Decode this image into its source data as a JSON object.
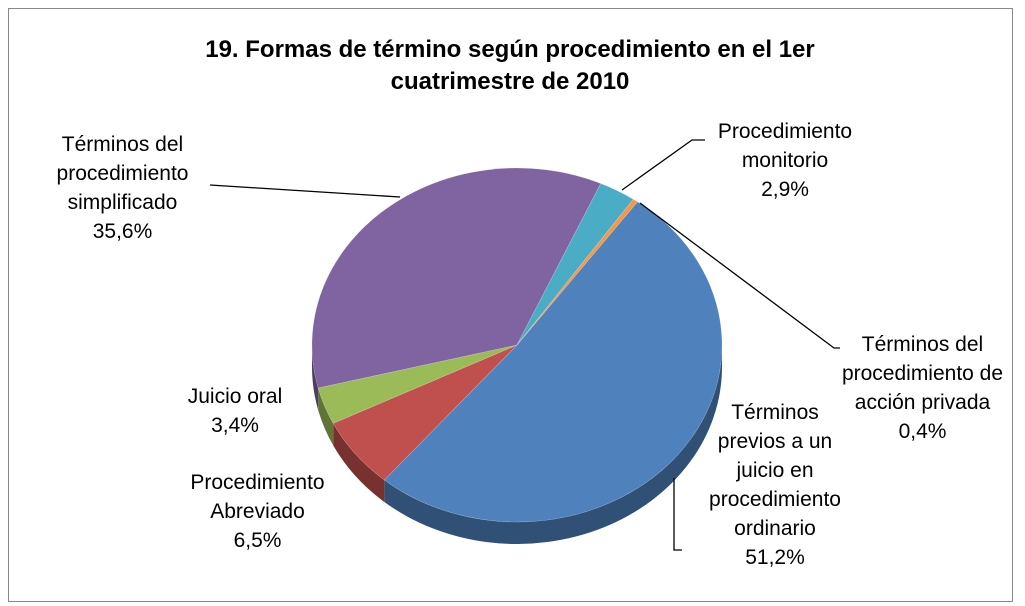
{
  "chart_data": {
    "type": "pie",
    "title": "19. Formas de término según procedimiento en el 1er cuatrimestre de 2010",
    "categories": [
      "Términos previos a un juicio en procedimiento ordinario",
      "Procedimiento Abreviado",
      "Juicio oral",
      "Términos del procedimiento simplificado",
      "Procedimiento monitorio",
      "Términos del procedimiento de acción privada"
    ],
    "values": [
      51.2,
      6.5,
      3.4,
      35.6,
      2.9,
      0.4
    ],
    "value_labels": [
      "51,2%",
      "6,5%",
      "3,4%",
      "35,6%",
      "2,9%",
      "0,4%"
    ],
    "colors": [
      "#4f81bd",
      "#c0504d",
      "#9bbb59",
      "#8064a2",
      "#4bacc6",
      "#f79646"
    ]
  }
}
